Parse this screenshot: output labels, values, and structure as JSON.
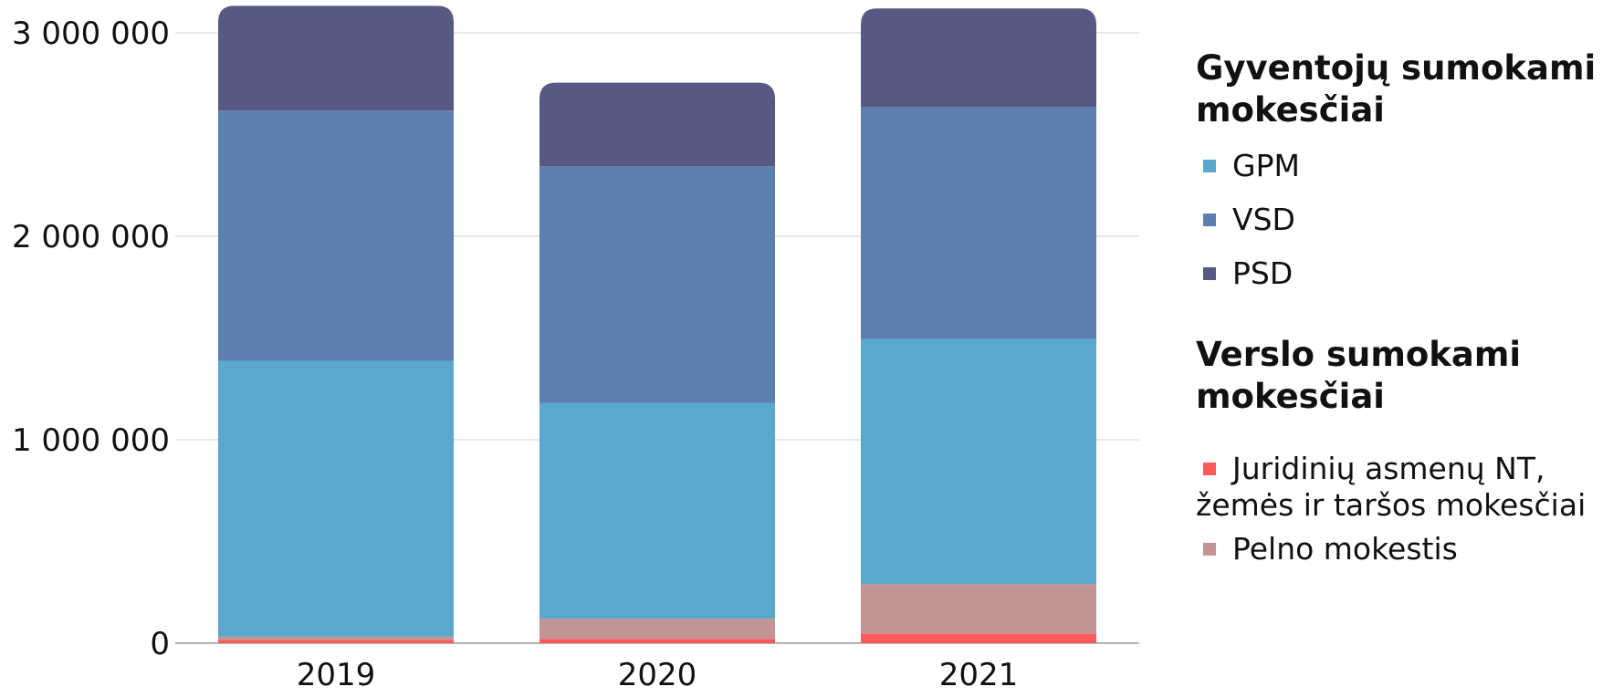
{
  "chart_data": {
    "type": "bar",
    "stacked": true,
    "categories": [
      "2019",
      "2020",
      "2021"
    ],
    "series": [
      {
        "name": "Juridinių asmenų NT, žemės ir taršos mokesčiai",
        "color": "#ff5a5a",
        "values": [
          15000,
          20000,
          45000
        ]
      },
      {
        "name": "Pelno mokestis",
        "color": "#c49393",
        "values": [
          18000,
          100000,
          245000
        ]
      },
      {
        "name": "GPM",
        "color": "#5ba8cf",
        "values": [
          1355000,
          1060000,
          1205000
        ]
      },
      {
        "name": "VSD",
        "color": "#5b80b0",
        "values": [
          1230000,
          1165000,
          1140000
        ]
      },
      {
        "name": "PSD",
        "color": "#565a82",
        "values": [
          515000,
          410000,
          485000
        ]
      }
    ],
    "yticks": [
      {
        "value": 0,
        "label": "0"
      },
      {
        "value": 1000000,
        "label": "1 000 000"
      },
      {
        "value": 2000000,
        "label": "2 000 000"
      },
      {
        "value": 3000000,
        "label": "3 000 000"
      }
    ],
    "ylim": [
      0,
      3000000
    ],
    "grid": true,
    "legend_position": "right",
    "title": "",
    "xlabel": "",
    "ylabel": ""
  },
  "legend": {
    "group1": {
      "title": "Gyventojų sumokami mokesčiai",
      "items": [
        {
          "label": "GPM",
          "color": "#5ba8cf"
        },
        {
          "label": "VSD",
          "color": "#5b80b0"
        },
        {
          "label": "PSD",
          "color": "#565a82"
        }
      ]
    },
    "group2": {
      "title": "Verslo sumokami mokesčiai",
      "items": [
        {
          "label": "Juridinių asmenų NT, žemės ir taršos mokesčiai",
          "color": "#ff5a5a"
        },
        {
          "label": "Pelno mokestis",
          "color": "#c49393"
        }
      ]
    }
  }
}
